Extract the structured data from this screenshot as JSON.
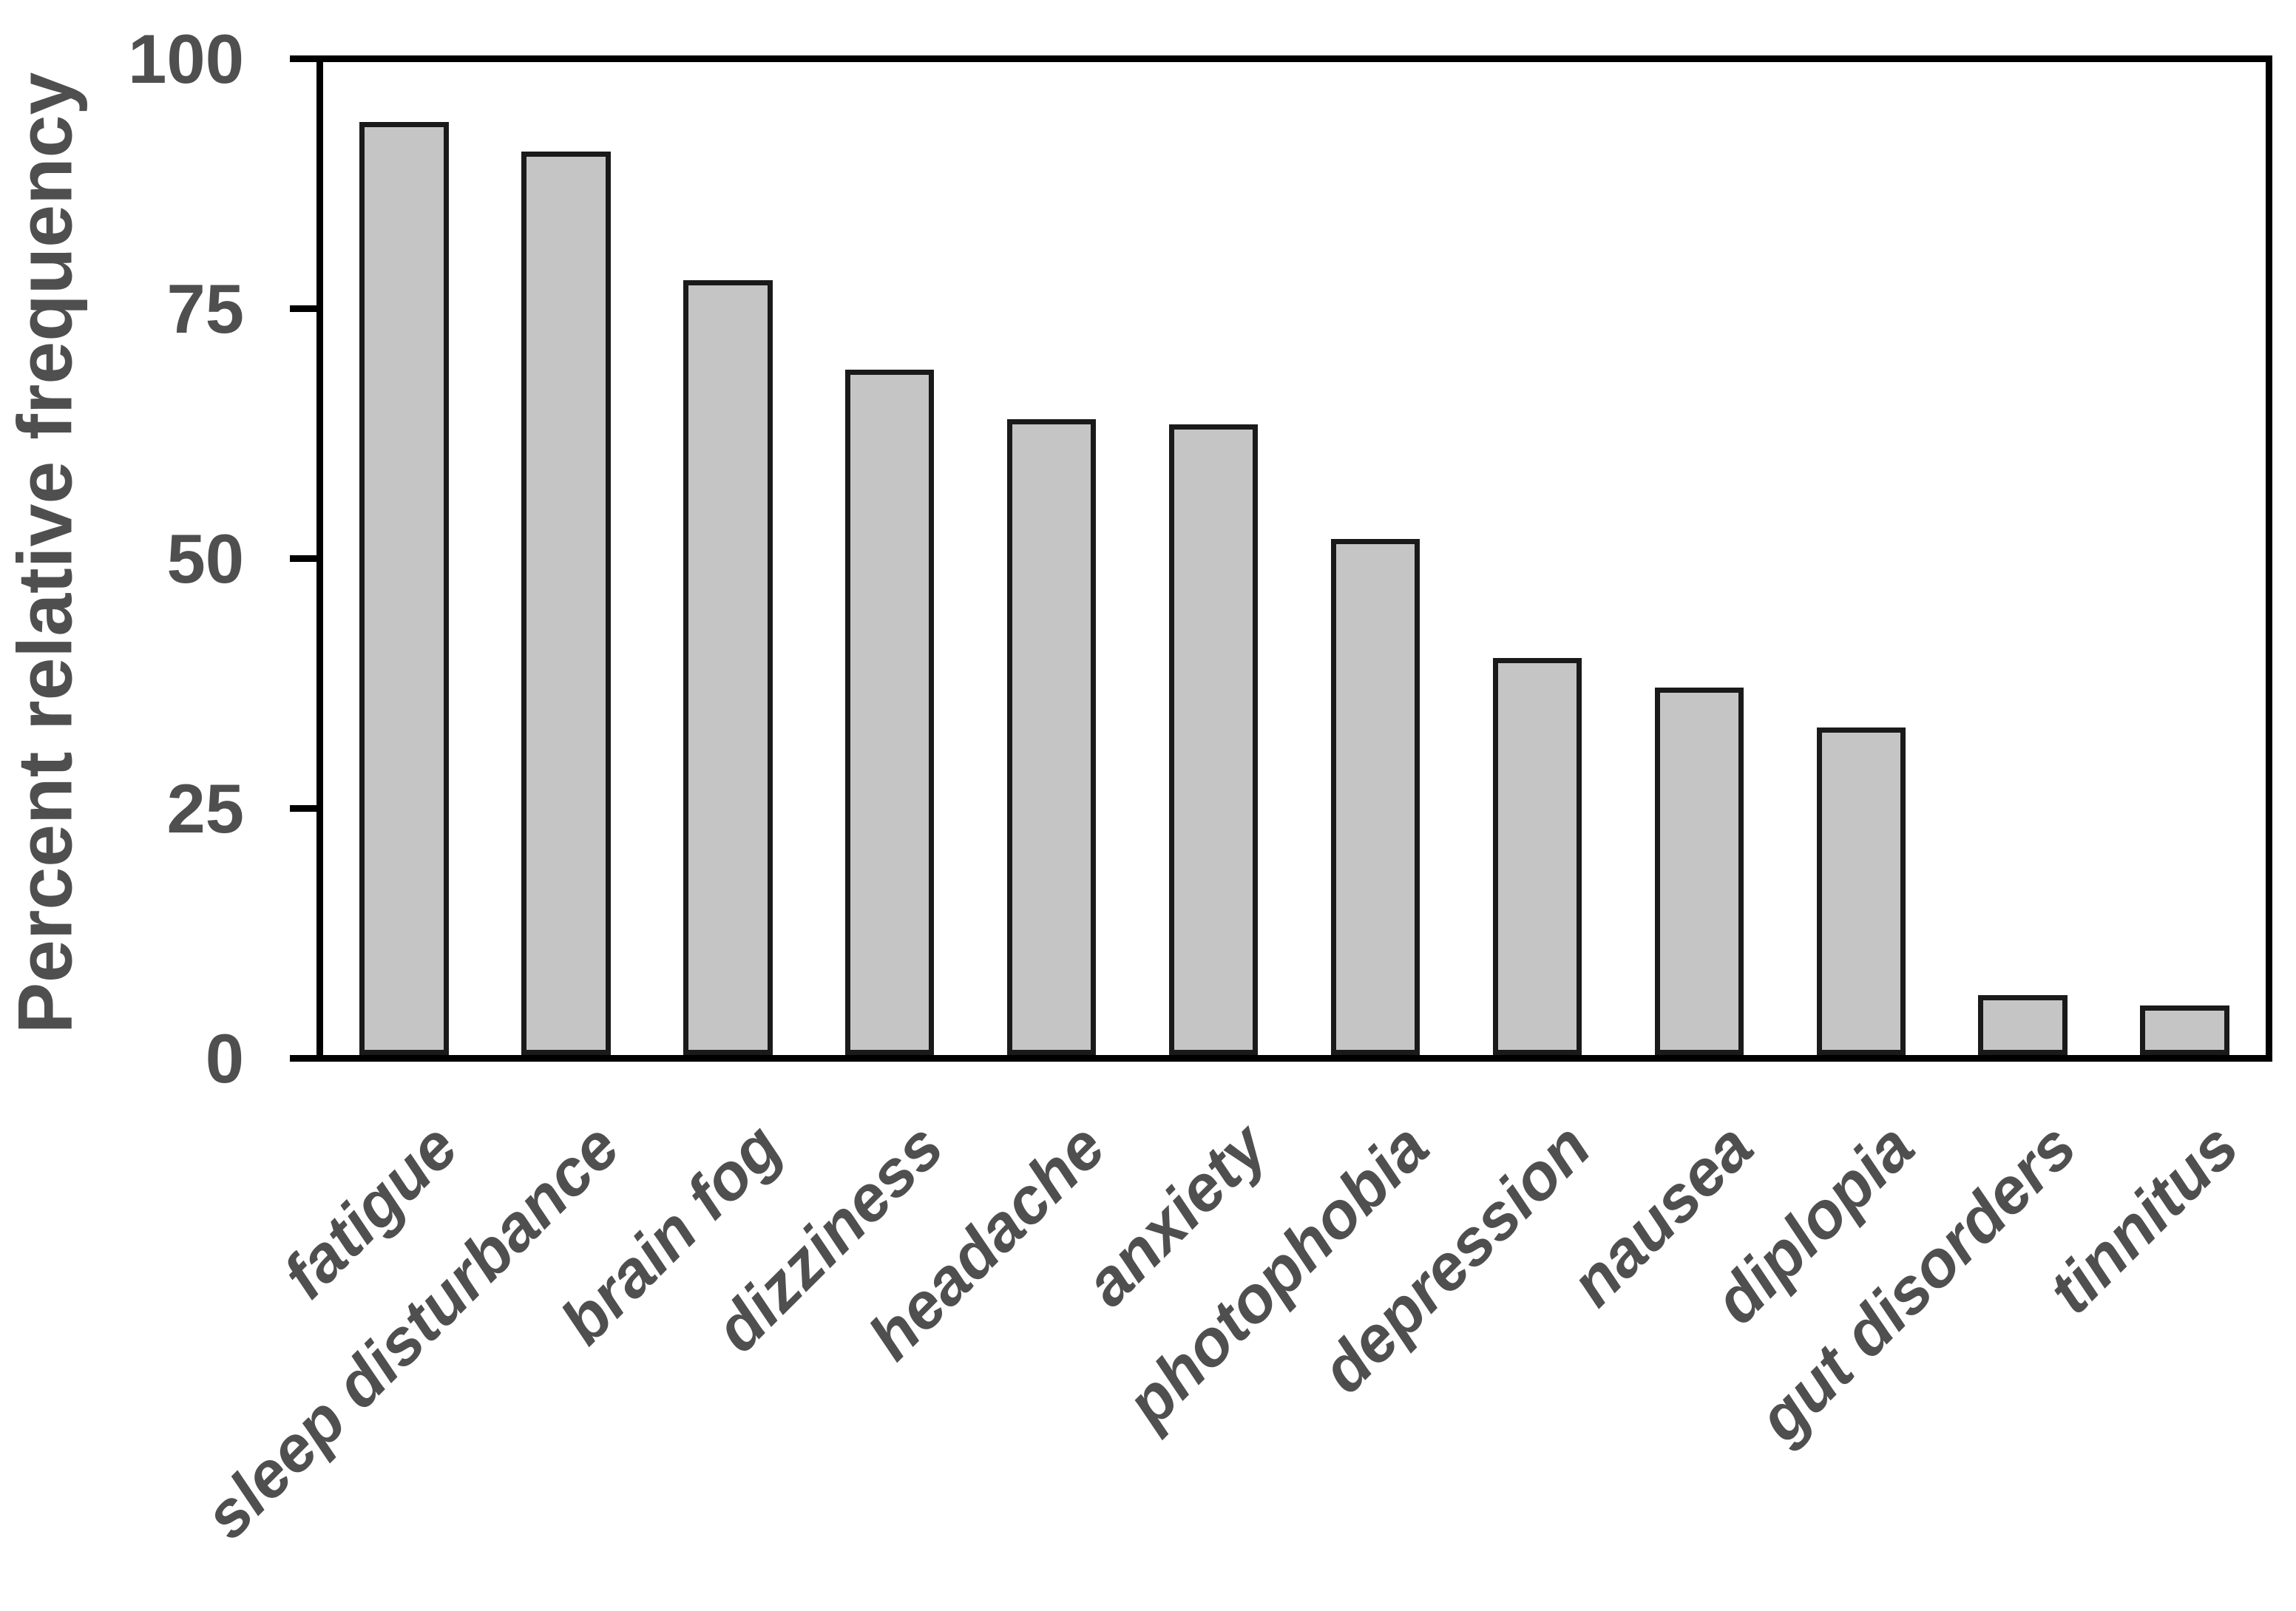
{
  "chart_data": {
    "type": "bar",
    "title": "",
    "xlabel": "",
    "ylabel": "Percent relative frequency",
    "categories": [
      "fatigue",
      "sleep disturbance",
      "brain fog",
      "dizziness",
      "headache",
      "anxiety",
      "photophobia",
      "depression",
      "nausea",
      "diplopia",
      "gut disorders",
      "tinnitus"
    ],
    "values": [
      94,
      91,
      78,
      69,
      64,
      63.5,
      52,
      40,
      37,
      33,
      6,
      5
    ],
    "ylim": [
      0,
      100
    ],
    "yticks": [
      0,
      25,
      50,
      75,
      100
    ],
    "grid": false,
    "legend": false,
    "bar_fill_color": "#c5c5c5",
    "bar_border_color": "#1a1a1a",
    "axis_color": "#000000",
    "text_color": "#4f4f4f"
  }
}
